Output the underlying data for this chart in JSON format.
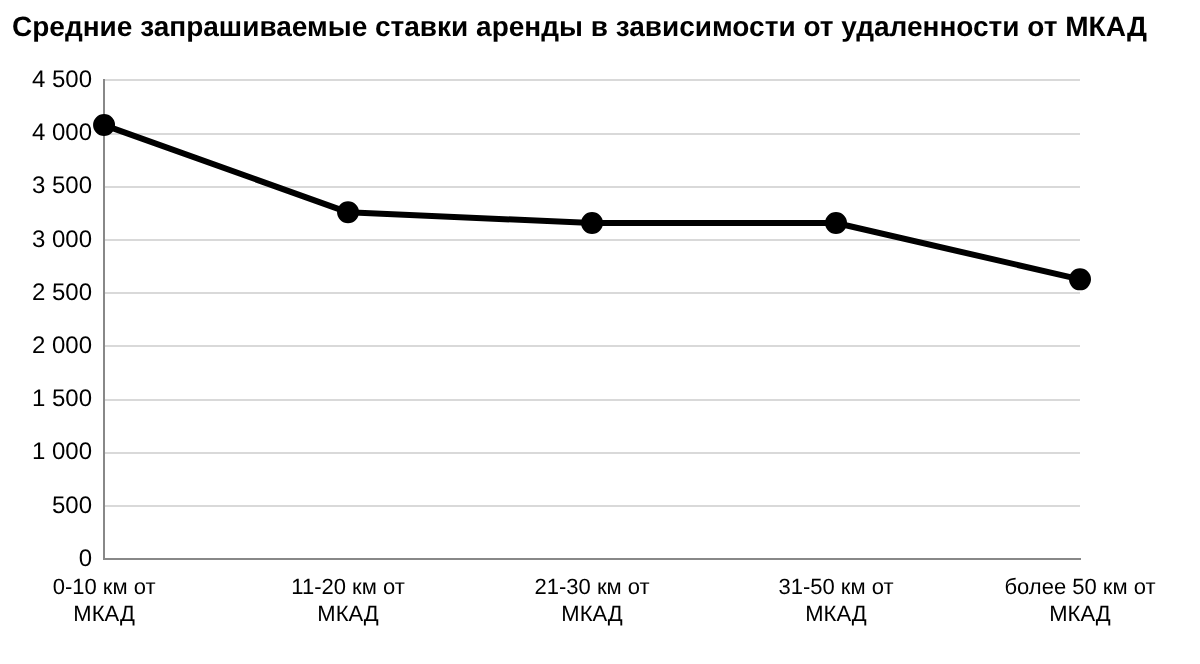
{
  "chart_data": {
    "type": "line",
    "title": "Средние запрашиваемые ставки аренды в зависимости от удаленности от МКАД",
    "categories": [
      "0-10 км от МКАД",
      "11-20 км от МКАД",
      "21-30 км от МКАД",
      "31-50 км от МКАД",
      "более 50 км от МКАД"
    ],
    "series": [
      {
        "color": "#000000",
        "values": [
          4080,
          3260,
          3160,
          3160,
          2630
        ]
      }
    ],
    "ylim": [
      0,
      4500
    ],
    "yticks": [
      0,
      500,
      {
        "value": 1000,
        "label": "1 000"
      },
      {
        "value": 1500,
        "label": "1 500"
      },
      {
        "value": 2000,
        "label": "2 000"
      },
      {
        "value": 2500,
        "label": "2 500"
      },
      {
        "value": 3000,
        "label": "3 000"
      },
      {
        "value": 3500,
        "label": "3 500"
      },
      {
        "value": 4000,
        "label": "4 000"
      },
      {
        "value": 4500,
        "label": "4 500"
      }
    ],
    "grid": "y",
    "marker": "circle",
    "line_style": "solid",
    "legend": false
  }
}
